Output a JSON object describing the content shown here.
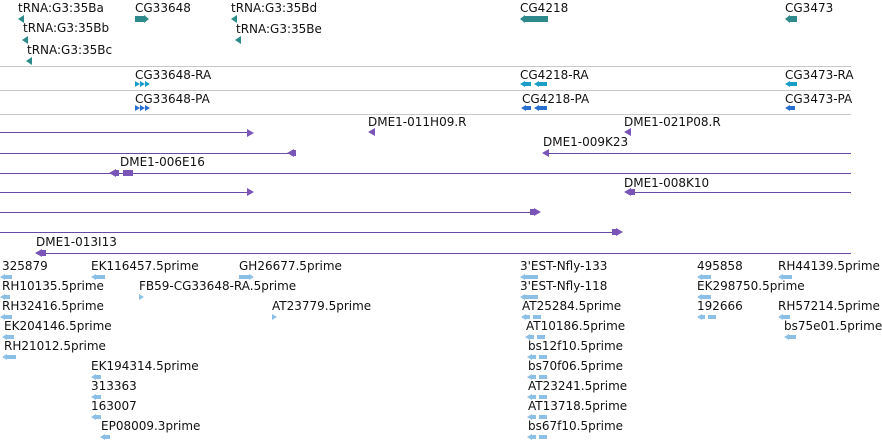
{
  "colors": {
    "gene": "#2d8a8a",
    "transcript_ra": "#1a9ec8",
    "transcript_pa": "#2a6fd0",
    "clone": "#7a55b8",
    "est": "#8cbfe6",
    "divider": "#c8c8c8"
  },
  "genes_track": {
    "features": [
      {
        "label": "tRNA:G3:35Ba",
        "glyph": "left-arrow"
      },
      {
        "label": "tRNA:G3:35Bb",
        "glyph": "left-arrow"
      },
      {
        "label": "tRNA:G3:35Bc",
        "glyph": "left-arrow"
      },
      {
        "label": "CG33648",
        "glyph": "right-arrow"
      },
      {
        "label": "tRNA:G3:35Bd",
        "glyph": "left-arrow"
      },
      {
        "label": "tRNA:G3:35Be",
        "glyph": "left-arrow"
      },
      {
        "label": "CG4218",
        "glyph": "left-arrow"
      },
      {
        "label": "CG3473",
        "glyph": "left-arrow"
      }
    ]
  },
  "transcripts_ra": {
    "features": [
      {
        "label": "CG33648-RA",
        "glyph": "right-arrows"
      },
      {
        "label": "CG4218-RA",
        "glyph": "left-arrows"
      },
      {
        "label": "CG3473-RA",
        "glyph": "left-arrow"
      }
    ]
  },
  "proteins_pa": {
    "features": [
      {
        "label": "CG33648-PA",
        "glyph": "right-arrows"
      },
      {
        "label": "CG4218-PA",
        "glyph": "left-arrows"
      },
      {
        "label": "CG3473-PA",
        "glyph": "left-arrow"
      }
    ]
  },
  "clones_track": {
    "features": [
      {
        "label": "DME1-011H09.R",
        "glyph": "left-arrow"
      },
      {
        "label": "DME1-021P08.R",
        "glyph": "left-arrow"
      },
      {
        "label": "DME1-009K23",
        "glyph": "left-arrow"
      },
      {
        "label": "DME1-006E16",
        "glyph": "left-arrow"
      },
      {
        "label": "DME1-008K10",
        "glyph": "left-arrow"
      },
      {
        "label": "DME1-013I13",
        "glyph": "left-arrow"
      }
    ]
  },
  "est_track": {
    "features": [
      {
        "label": "325879"
      },
      {
        "label": "EK116457.5prime"
      },
      {
        "label": "GH26677.5prime"
      },
      {
        "label": "3'EST-Nfly-133"
      },
      {
        "label": "495858"
      },
      {
        "label": "RH44139.5prime"
      },
      {
        "label": "RH10135.5prime"
      },
      {
        "label": "FB59-CG33648-RA.5prime"
      },
      {
        "label": "3'EST-Nfly-118"
      },
      {
        "label": "EK298750.5prime"
      },
      {
        "label": "RH32416.5prime"
      },
      {
        "label": "AT23779.5prime"
      },
      {
        "label": "AT25284.5prime"
      },
      {
        "label": "192666"
      },
      {
        "label": "RH57214.5prime"
      },
      {
        "label": "EK204146.5prime"
      },
      {
        "label": "AT10186.5prime"
      },
      {
        "label": "bs75e01.5prime"
      },
      {
        "label": "RH21012.5prime"
      },
      {
        "label": "bs12f10.5prime"
      },
      {
        "label": "EK194314.5prime"
      },
      {
        "label": "bs70f06.5prime"
      },
      {
        "label": "313363"
      },
      {
        "label": "AT23241.5prime"
      },
      {
        "label": "163007"
      },
      {
        "label": "AT13718.5prime"
      },
      {
        "label": "EP08009.3prime"
      },
      {
        "label": "bs67f10.5prime"
      }
    ]
  }
}
